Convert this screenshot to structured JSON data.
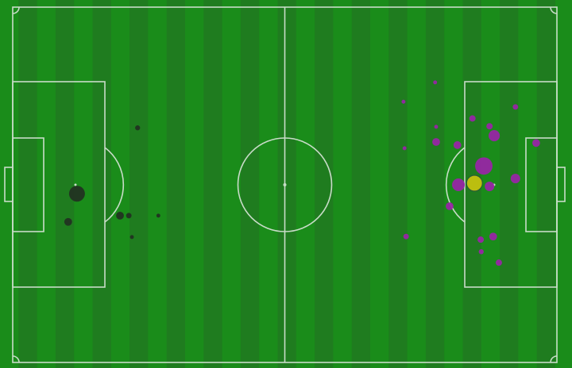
{
  "chart_data": {
    "type": "scatter",
    "title": "",
    "pitch": {
      "length_m": 105,
      "width_m": 68
    },
    "colors": {
      "pitch_light": "#1a8c1a",
      "pitch_dark": "#1f7c1f",
      "lines": "#c8dcc8",
      "team_a": "#9a23a8",
      "team_b": "#223322",
      "highlight": "#c9c40e"
    },
    "series": [
      {
        "color": "#9a23a8",
        "points": [
          {
            "x": 81.5,
            "y": 14.4,
            "xg": 0.03
          },
          {
            "x": 75.4,
            "y": 18.1,
            "xg": 0.03
          },
          {
            "x": 97.0,
            "y": 19.1,
            "xg": 0.06
          },
          {
            "x": 88.7,
            "y": 21.3,
            "xg": 0.08
          },
          {
            "x": 81.7,
            "y": 22.9,
            "xg": 0.03
          },
          {
            "x": 92.0,
            "y": 22.8,
            "xg": 0.08
          },
          {
            "x": 92.9,
            "y": 24.6,
            "xg": 0.25
          },
          {
            "x": 81.7,
            "y": 25.8,
            "xg": 0.12
          },
          {
            "x": 85.8,
            "y": 26.4,
            "xg": 0.12
          },
          {
            "x": 101.0,
            "y": 26.0,
            "xg": 0.12
          },
          {
            "x": 75.6,
            "y": 27.0,
            "xg": 0.03
          },
          {
            "x": 90.9,
            "y": 30.4,
            "xg": 0.6
          },
          {
            "x": 97.0,
            "y": 32.8,
            "xg": 0.18
          },
          {
            "x": 86.0,
            "y": 34.0,
            "xg": 0.32
          },
          {
            "x": 89.1,
            "y": 33.7,
            "xg": 0.5,
            "highlight": true
          },
          {
            "x": 92.0,
            "y": 34.3,
            "xg": 0.18
          },
          {
            "x": 84.3,
            "y": 38.1,
            "xg": 0.12
          },
          {
            "x": 75.9,
            "y": 43.9,
            "xg": 0.06
          },
          {
            "x": 90.3,
            "y": 44.5,
            "xg": 0.08
          },
          {
            "x": 92.7,
            "y": 43.9,
            "xg": 0.12
          },
          {
            "x": 90.4,
            "y": 46.8,
            "xg": 0.05
          },
          {
            "x": 93.8,
            "y": 48.9,
            "xg": 0.08
          }
        ]
      },
      {
        "color": "#223322",
        "points": [
          {
            "x": 24.1,
            "y": 23.1,
            "xg": 0.05
          },
          {
            "x": 12.4,
            "y": 35.7,
            "xg": 0.5
          },
          {
            "x": 10.7,
            "y": 41.1,
            "xg": 0.12
          },
          {
            "x": 20.7,
            "y": 39.9,
            "xg": 0.12
          },
          {
            "x": 22.4,
            "y": 39.9,
            "xg": 0.06
          },
          {
            "x": 28.1,
            "y": 39.9,
            "xg": 0.03
          },
          {
            "x": 23.0,
            "y": 44.0,
            "xg": 0.03
          }
        ]
      }
    ]
  }
}
